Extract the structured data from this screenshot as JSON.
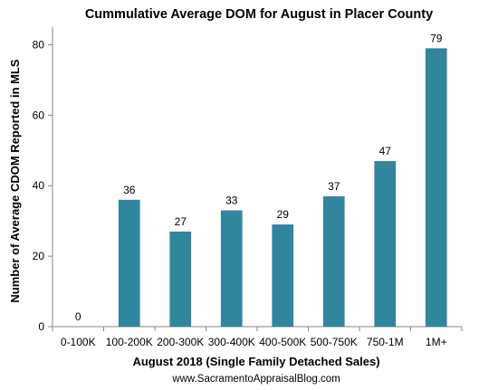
{
  "chart_data": {
    "type": "bar",
    "title": "Cummulative Average DOM for August in Placer County",
    "xlabel": "August 2018  (Single Family Detached Sales)",
    "ylabel": "Number of Average CDOM Reported in MLS",
    "categories": [
      "0-100K",
      "100-200K",
      "200-300K",
      "300-400K",
      "400-500K",
      "500-750K",
      "750-1M",
      "1M+"
    ],
    "values": [
      0,
      36,
      27,
      33,
      29,
      37,
      47,
      79
    ],
    "data_labels": [
      "0",
      "36",
      "27",
      "33",
      "29",
      "37",
      "47",
      "79"
    ],
    "ylim": [
      0,
      85
    ],
    "yticks": [
      0,
      20,
      40,
      60,
      80
    ],
    "grid": false,
    "legend": "none",
    "bar_color": "#31859c"
  },
  "footer": "www.SacramentoAppraisalBlog.com"
}
